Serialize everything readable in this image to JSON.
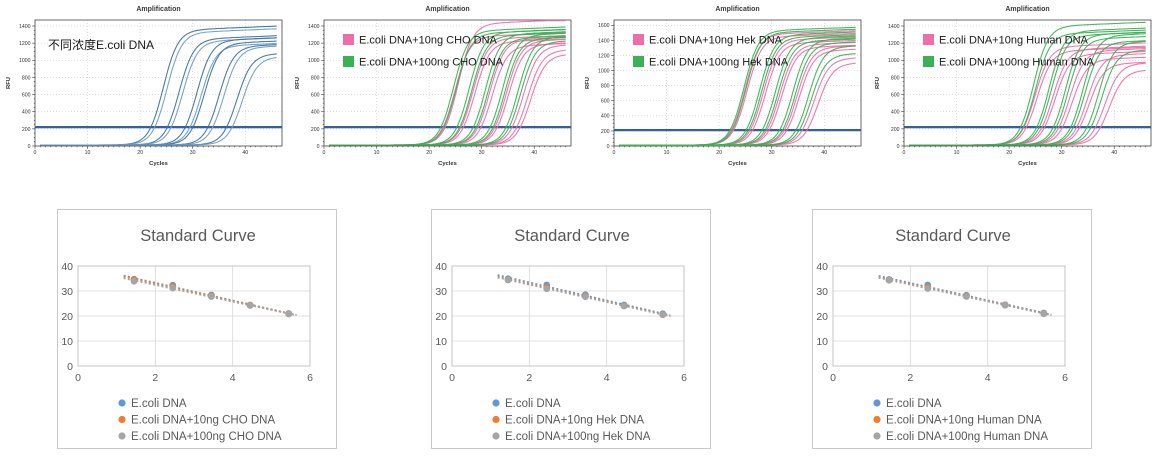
{
  "palette": {
    "blue": "#3e6fa6",
    "blue_light": "#6d9cc6",
    "pink": "#ee6ea9",
    "green": "#3cb054",
    "threshold": "#33619c",
    "excel_blue": "#5B9BD5",
    "excel_orange": "#ED7D31",
    "excel_gray": "#A5A5A5",
    "grid_dotted": "#bdbdbd",
    "excel_grid": "#d9d9d9",
    "excel_axis": "#bfbfbf",
    "label_gray": "#595959",
    "amp_text": "#3a3a3a"
  },
  "curve_fields": [
    "color_key",
    "midpoint_cycle",
    "plateau_rfu"
  ],
  "chart_data": [
    {
      "kind": "amplification",
      "type": "line",
      "title": "Amplification",
      "xlabel": "Cycles",
      "ylabel": "RFU",
      "annotation": "不同浓度E.coli DNA",
      "legend": [],
      "xlim": [
        0,
        47
      ],
      "ylim": [
        0,
        1400
      ],
      "plot_ymax": 1470,
      "x_ticks": [
        0,
        10,
        20,
        30,
        40
      ],
      "y_ticks": [
        0,
        200,
        400,
        600,
        800,
        1000,
        1200,
        1400
      ],
      "threshold_rfu": 220,
      "grid": true,
      "curves": [
        [
          "blue",
          24.4,
          1345
        ],
        [
          "blue_light",
          25.1,
          1315
        ],
        [
          "blue",
          27.4,
          1240
        ],
        [
          "blue_light",
          28.1,
          1215
        ],
        [
          "blue",
          30.8,
          1225
        ],
        [
          "blue_light",
          31.6,
          1160
        ],
        [
          "blue",
          32.2,
          1190
        ],
        [
          "blue",
          35.0,
          1155
        ],
        [
          "blue_light",
          35.9,
          1140
        ],
        [
          "blue",
          38.4,
          1060
        ],
        [
          "blue_light",
          39.4,
          1025
        ]
      ]
    },
    {
      "kind": "amplification",
      "type": "line",
      "title": "Amplification",
      "xlabel": "Cycles",
      "ylabel": "RFU",
      "annotation": "",
      "legend": [
        {
          "label": "E.coli DNA+10ng CHO DNA",
          "color_key": "pink"
        },
        {
          "label": "E.coli DNA+100ng CHO DNA",
          "color_key": "green"
        }
      ],
      "xlim": [
        0,
        47
      ],
      "ylim": [
        0,
        1400
      ],
      "plot_ymax": 1470,
      "x_ticks": [
        0,
        10,
        20,
        30,
        40
      ],
      "y_ticks": [
        0,
        200,
        400,
        600,
        800,
        1000,
        1200,
        1400
      ],
      "threshold_rfu": 220,
      "grid": true,
      "curves": [
        [
          "pink",
          24.9,
          1270
        ],
        [
          "pink",
          25.5,
          1420
        ],
        [
          "pink",
          28.3,
          1245
        ],
        [
          "pink",
          28.7,
          1205
        ],
        [
          "pink",
          31.5,
          1230
        ],
        [
          "pink",
          32.0,
          1160
        ],
        [
          "pink",
          34.7,
          1215
        ],
        [
          "pink",
          35.1,
          1175
        ],
        [
          "pink",
          37.9,
          1160
        ],
        [
          "pink",
          38.7,
          1105
        ],
        [
          "pink",
          39.3,
          1055
        ],
        [
          "green",
          24.6,
          1335
        ],
        [
          "green",
          25.1,
          1305
        ],
        [
          "green",
          27.6,
          1315
        ],
        [
          "green",
          28.1,
          1275
        ],
        [
          "green",
          30.7,
          1295
        ],
        [
          "green",
          31.2,
          1245
        ],
        [
          "green",
          33.9,
          1285
        ],
        [
          "green",
          34.4,
          1240
        ],
        [
          "green",
          36.9,
          1255
        ],
        [
          "green",
          37.4,
          1205
        ]
      ]
    },
    {
      "kind": "amplification",
      "type": "line",
      "title": "Amplification",
      "xlabel": "Cycles",
      "ylabel": "RFU",
      "annotation": "",
      "legend": [
        {
          "label": "E.coli DNA+10ng Hek DNA",
          "color_key": "pink"
        },
        {
          "label": "E.coli DNA+100ng Hek DNA",
          "color_key": "green"
        }
      ],
      "xlim": [
        0,
        47
      ],
      "ylim": [
        0,
        1600
      ],
      "plot_ymax": 1670,
      "x_ticks": [
        0,
        10,
        20,
        30,
        40
      ],
      "y_ticks": [
        0,
        200,
        400,
        600,
        800,
        1000,
        1200,
        1400,
        1600
      ],
      "threshold_rfu": 210,
      "grid": true,
      "curves": [
        [
          "pink",
          24.9,
          1475
        ],
        [
          "pink",
          25.3,
          1440
        ],
        [
          "pink",
          28.4,
          1400
        ],
        [
          "pink",
          28.8,
          1355
        ],
        [
          "pink",
          31.5,
          1335
        ],
        [
          "pink",
          31.9,
          1300
        ],
        [
          "pink",
          34.8,
          1300
        ],
        [
          "pink",
          35.2,
          1255
        ],
        [
          "pink",
          38.0,
          1150
        ],
        [
          "pink",
          38.8,
          1085
        ],
        [
          "green",
          24.7,
          1520
        ],
        [
          "green",
          25.1,
          1495
        ],
        [
          "green",
          27.7,
          1465
        ],
        [
          "green",
          28.1,
          1430
        ],
        [
          "green",
          30.7,
          1420
        ],
        [
          "green",
          31.2,
          1380
        ],
        [
          "green",
          34.0,
          1400
        ],
        [
          "green",
          34.5,
          1350
        ],
        [
          "green",
          37.0,
          1305
        ],
        [
          "green",
          37.5,
          1205
        ]
      ]
    },
    {
      "kind": "amplification",
      "type": "line",
      "title": "Amplification",
      "xlabel": "Cycles",
      "ylabel": "RFU",
      "annotation": "",
      "legend": [
        {
          "label": "E.coli DNA+10ng Human DNA",
          "color_key": "pink"
        },
        {
          "label": "E.coli DNA+100ng Human DNA",
          "color_key": "green"
        }
      ],
      "xlim": [
        0,
        47
      ],
      "ylim": [
        0,
        1400
      ],
      "plot_ymax": 1470,
      "x_ticks": [
        0,
        10,
        20,
        30,
        40
      ],
      "y_ticks": [
        0,
        200,
        400,
        600,
        800,
        1000,
        1200,
        1400
      ],
      "threshold_rfu": 220,
      "grid": true,
      "curves": [
        [
          "pink",
          24.9,
          1150
        ],
        [
          "pink",
          25.3,
          1100
        ],
        [
          "pink",
          28.3,
          1120
        ],
        [
          "pink",
          28.7,
          1060
        ],
        [
          "pink",
          31.5,
          1100
        ],
        [
          "pink",
          32.0,
          1000
        ],
        [
          "pink",
          34.8,
          1050
        ],
        [
          "pink",
          35.2,
          950
        ],
        [
          "pink",
          38.2,
          950
        ],
        [
          "pink",
          39.0,
          870
        ],
        [
          "green",
          24.6,
          1390
        ],
        [
          "green",
          25.0,
          1300
        ],
        [
          "green",
          27.6,
          1330
        ],
        [
          "green",
          28.0,
          1280
        ],
        [
          "green",
          30.7,
          1290
        ],
        [
          "green",
          31.2,
          1240
        ],
        [
          "green",
          34.0,
          1280
        ],
        [
          "green",
          34.4,
          1200
        ],
        [
          "green",
          37.0,
          1200
        ],
        [
          "green",
          37.6,
          1100
        ]
      ]
    },
    {
      "kind": "standard_curve",
      "type": "scatter",
      "title": "Standard Curve",
      "xlim": [
        0,
        6
      ],
      "ylim": [
        0,
        40
      ],
      "x_ticks": [
        0,
        2,
        4,
        6
      ],
      "y_ticks": [
        0,
        10,
        20,
        30,
        40
      ],
      "x": [
        1.45,
        2.45,
        3.45,
        4.45,
        5.45
      ],
      "grid": true,
      "legend_position": "bottom",
      "series": [
        {
          "name": "E.coli DNA",
          "color_key": "excel_blue",
          "values": [
            34.7,
            32.3,
            28.4,
            24.4,
            21.0
          ],
          "trendline": "dotted"
        },
        {
          "name": "E.coli DNA+10ng CHO DNA",
          "color_key": "excel_orange",
          "values": [
            34.5,
            31.8,
            28.1,
            24.3,
            20.9
          ],
          "trendline": "dotted"
        },
        {
          "name": "E.coli DNA+100ng CHO DNA",
          "color_key": "excel_gray",
          "values": [
            33.9,
            31.2,
            27.8,
            24.2,
            20.8
          ],
          "trendline": "dotted"
        }
      ]
    },
    {
      "kind": "standard_curve",
      "type": "scatter",
      "title": "Standard Curve",
      "xlim": [
        0,
        6
      ],
      "ylim": [
        0,
        40
      ],
      "x_ticks": [
        0,
        2,
        4,
        6
      ],
      "y_ticks": [
        0,
        10,
        20,
        30,
        40
      ],
      "x": [
        1.45,
        2.45,
        3.45,
        4.45,
        5.45
      ],
      "grid": true,
      "legend_position": "bottom",
      "series": [
        {
          "name": "E.coli DNA",
          "color_key": "excel_blue",
          "values": [
            34.9,
            32.4,
            28.5,
            24.4,
            20.9
          ],
          "trendline": "dotted"
        },
        {
          "name": "E.coli DNA+10ng Hek DNA",
          "color_key": "excel_orange",
          "values": [
            34.5,
            31.5,
            28.0,
            24.1,
            20.6
          ],
          "trendline": "dotted"
        },
        {
          "name": "E.coli DNA+100ng Hek DNA",
          "color_key": "excel_gray",
          "values": [
            34.4,
            30.9,
            27.7,
            24.0,
            20.5
          ],
          "trendline": "dotted"
        }
      ]
    },
    {
      "kind": "standard_curve",
      "type": "scatter",
      "title": "Standard Curve",
      "xlim": [
        0,
        6
      ],
      "ylim": [
        0,
        40
      ],
      "x_ticks": [
        0,
        2,
        4,
        6
      ],
      "y_ticks": [
        0,
        10,
        20,
        30,
        40
      ],
      "x": [
        1.45,
        2.45,
        3.45,
        4.45,
        5.45
      ],
      "grid": true,
      "legend_position": "bottom",
      "series": [
        {
          "name": "E.coli DNA",
          "color_key": "excel_blue",
          "values": [
            34.6,
            32.4,
            28.3,
            24.5,
            21.2
          ],
          "trendline": "dotted"
        },
        {
          "name": "E.coli DNA+10ng Human DNA",
          "color_key": "excel_orange",
          "values": [
            34.4,
            31.5,
            28.0,
            24.4,
            21.0
          ],
          "trendline": "dotted"
        },
        {
          "name": "E.coli DNA+100ng Human DNA",
          "color_key": "excel_gray",
          "values": [
            34.3,
            31.0,
            27.8,
            24.3,
            20.9
          ],
          "trendline": "dotted"
        }
      ]
    }
  ]
}
